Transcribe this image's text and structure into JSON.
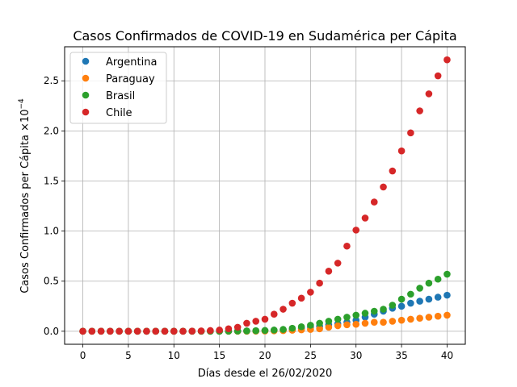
{
  "chart_data": {
    "type": "scatter",
    "title": "Casos Confirmados de COVID-19 en Sudamérica per Cápita",
    "xlabel": "Días desde el 26/02/2020",
    "ylabel_main": "Casos Confirmados per Cápita ×10",
    "ylabel_exponent": "−4",
    "xlim": [
      -2,
      42
    ],
    "ylim": [
      -0.13,
      2.84
    ],
    "xticks": [
      0,
      5,
      10,
      15,
      20,
      25,
      30,
      35,
      40
    ],
    "yticks": [
      0.0,
      0.5,
      1.0,
      1.5,
      2.0,
      2.5
    ],
    "ytick_labels": [
      "0.0",
      "0.5",
      "1.0",
      "1.5",
      "2.0",
      "2.5"
    ],
    "grid": true,
    "legend_position": "top-left",
    "x": [
      0,
      1,
      2,
      3,
      4,
      5,
      6,
      7,
      8,
      9,
      10,
      11,
      12,
      13,
      14,
      15,
      16,
      17,
      18,
      19,
      20,
      21,
      22,
      23,
      24,
      25,
      26,
      27,
      28,
      29,
      30,
      31,
      32,
      33,
      34,
      35,
      36,
      37,
      38,
      39,
      40
    ],
    "series": [
      {
        "name": "Argentina",
        "color": "#1f77b4",
        "values": [
          0,
          0,
          0,
          0,
          0,
          0,
          0,
          0,
          0,
          0,
          0,
          0,
          0,
          0,
          0,
          0,
          0,
          0.001,
          0.002,
          0.004,
          0.006,
          0.01,
          0.015,
          0.02,
          0.03,
          0.04,
          0.05,
          0.065,
          0.075,
          0.09,
          0.11,
          0.14,
          0.17,
          0.2,
          0.23,
          0.25,
          0.28,
          0.3,
          0.32,
          0.34,
          0.36
        ]
      },
      {
        "name": "Paraguay",
        "color": "#ff7f0e",
        "values": [
          0,
          0,
          0,
          0,
          0,
          0,
          0,
          0,
          0,
          0,
          0,
          0,
          0,
          0,
          0,
          0,
          0,
          0,
          0,
          0.001,
          0.002,
          0.004,
          0.006,
          0.01,
          0.014,
          0.018,
          0.024,
          0.04,
          0.055,
          0.065,
          0.07,
          0.08,
          0.09,
          0.09,
          0.1,
          0.11,
          0.12,
          0.13,
          0.14,
          0.15,
          0.16
        ]
      },
      {
        "name": "Brasil",
        "color": "#2ca02c",
        "values": [
          0,
          0,
          0,
          0,
          0,
          0,
          0,
          0,
          0,
          0,
          0,
          0,
          0,
          0,
          0,
          0,
          0.001,
          0.002,
          0.003,
          0.005,
          0.008,
          0.012,
          0.018,
          0.03,
          0.045,
          0.06,
          0.08,
          0.1,
          0.12,
          0.14,
          0.16,
          0.18,
          0.2,
          0.22,
          0.26,
          0.32,
          0.37,
          0.43,
          0.48,
          0.52,
          0.57
        ]
      },
      {
        "name": "Chile",
        "color": "#d62728",
        "values": [
          0,
          0,
          0,
          0,
          0,
          0,
          0,
          0,
          0,
          0,
          0,
          0,
          0.001,
          0.003,
          0.007,
          0.012,
          0.025,
          0.04,
          0.08,
          0.1,
          0.12,
          0.17,
          0.22,
          0.28,
          0.33,
          0.39,
          0.48,
          0.6,
          0.68,
          0.85,
          1.01,
          1.13,
          1.29,
          1.44,
          1.6,
          1.8,
          1.98,
          2.2,
          2.37,
          2.55,
          2.71
        ]
      }
    ]
  }
}
